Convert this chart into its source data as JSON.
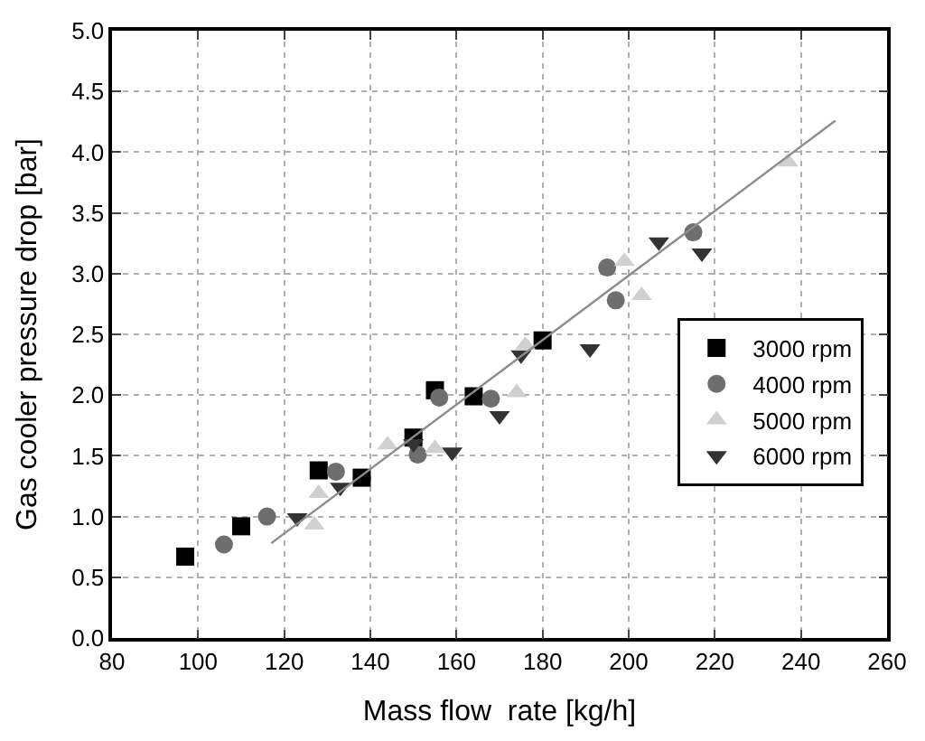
{
  "chart_data": {
    "type": "scatter",
    "xlabel": "Mass flow  rate [kg/h]",
    "ylabel": "Gas cooler pressure drop [bar]",
    "xlim": [
      80,
      260
    ],
    "xticks": [
      80,
      100,
      120,
      140,
      160,
      180,
      200,
      220,
      240,
      260
    ],
    "ylim": [
      0,
      5
    ],
    "yticks": [
      {
        "value": 0,
        "label": "0.0"
      },
      {
        "value": 0.5,
        "label": "0.5"
      },
      {
        "value": 1,
        "label": "1.0"
      },
      {
        "value": 1.5,
        "label": "1.5"
      },
      {
        "value": 2,
        "label": "2.0"
      },
      {
        "value": 2.5,
        "label": "2.5"
      },
      {
        "value": 3,
        "label": "3.0"
      },
      {
        "value": 3.5,
        "label": "3.5"
      },
      {
        "value": 4,
        "label": "4.0"
      },
      {
        "value": 4.5,
        "label": "4.5"
      },
      {
        "value": 5,
        "label": "5.0"
      }
    ],
    "grid": true,
    "legend": "bottom right",
    "series": [
      {
        "name": "3000 rpm",
        "color": "#000000",
        "marker": "square",
        "x": [
          97,
          110,
          128,
          138,
          150,
          155,
          164,
          180
        ],
        "values": [
          0.67,
          0.92,
          1.38,
          1.32,
          1.65,
          2.04,
          1.99,
          2.45
        ]
      },
      {
        "name": "4000 rpm",
        "color": "#6e6e6e",
        "marker": "circle",
        "x": [
          106,
          116,
          132,
          151,
          156,
          168,
          195,
          197,
          215
        ],
        "values": [
          0.77,
          1.0,
          1.37,
          1.51,
          1.98,
          1.97,
          3.05,
          2.78,
          3.34
        ]
      },
      {
        "name": "5000 rpm",
        "color": "#d0d0d0",
        "marker": "triangle",
        "x": [
          127,
          128,
          144,
          155,
          174,
          176,
          199,
          203,
          237
        ],
        "values": [
          0.93,
          1.19,
          1.59,
          1.56,
          2.02,
          2.41,
          3.1,
          2.82,
          3.92
        ]
      },
      {
        "name": "6000 rpm",
        "color": "#333333",
        "marker": "triangle-down",
        "x": [
          123,
          133,
          150,
          159,
          170,
          175,
          191,
          207,
          217
        ],
        "values": [
          0.99,
          1.24,
          1.6,
          1.53,
          1.83,
          2.33,
          2.38,
          3.26,
          3.17
        ]
      },
      {
        "type": "line",
        "color": "#8c8c8c",
        "marker": "none",
        "x": [
          117,
          248
        ],
        "values": [
          0.78,
          4.26
        ]
      }
    ]
  }
}
